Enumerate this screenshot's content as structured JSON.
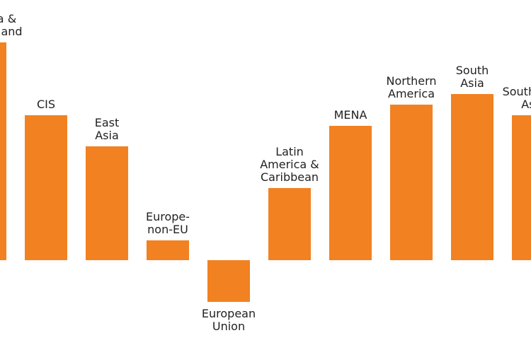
{
  "chart_data": {
    "type": "bar",
    "color": "#f28121",
    "categories": [
      [
        "Australia &",
        "New Zealand"
      ],
      [
        "CIS"
      ],
      [
        "East",
        "Asia"
      ],
      [
        "Europe-",
        "non-EU"
      ],
      [
        "European",
        "Union"
      ],
      [
        "Latin",
        "America &",
        "Caribbean"
      ],
      [
        "MENA"
      ],
      [
        "Northern",
        "America"
      ],
      [
        "South",
        "Asia"
      ],
      [
        "South-East",
        "Asia"
      ]
    ],
    "values": [
      308,
      205,
      161,
      28,
      -59,
      102,
      190,
      220,
      235,
      205
    ],
    "ylim": [
      -120,
      368
    ]
  }
}
